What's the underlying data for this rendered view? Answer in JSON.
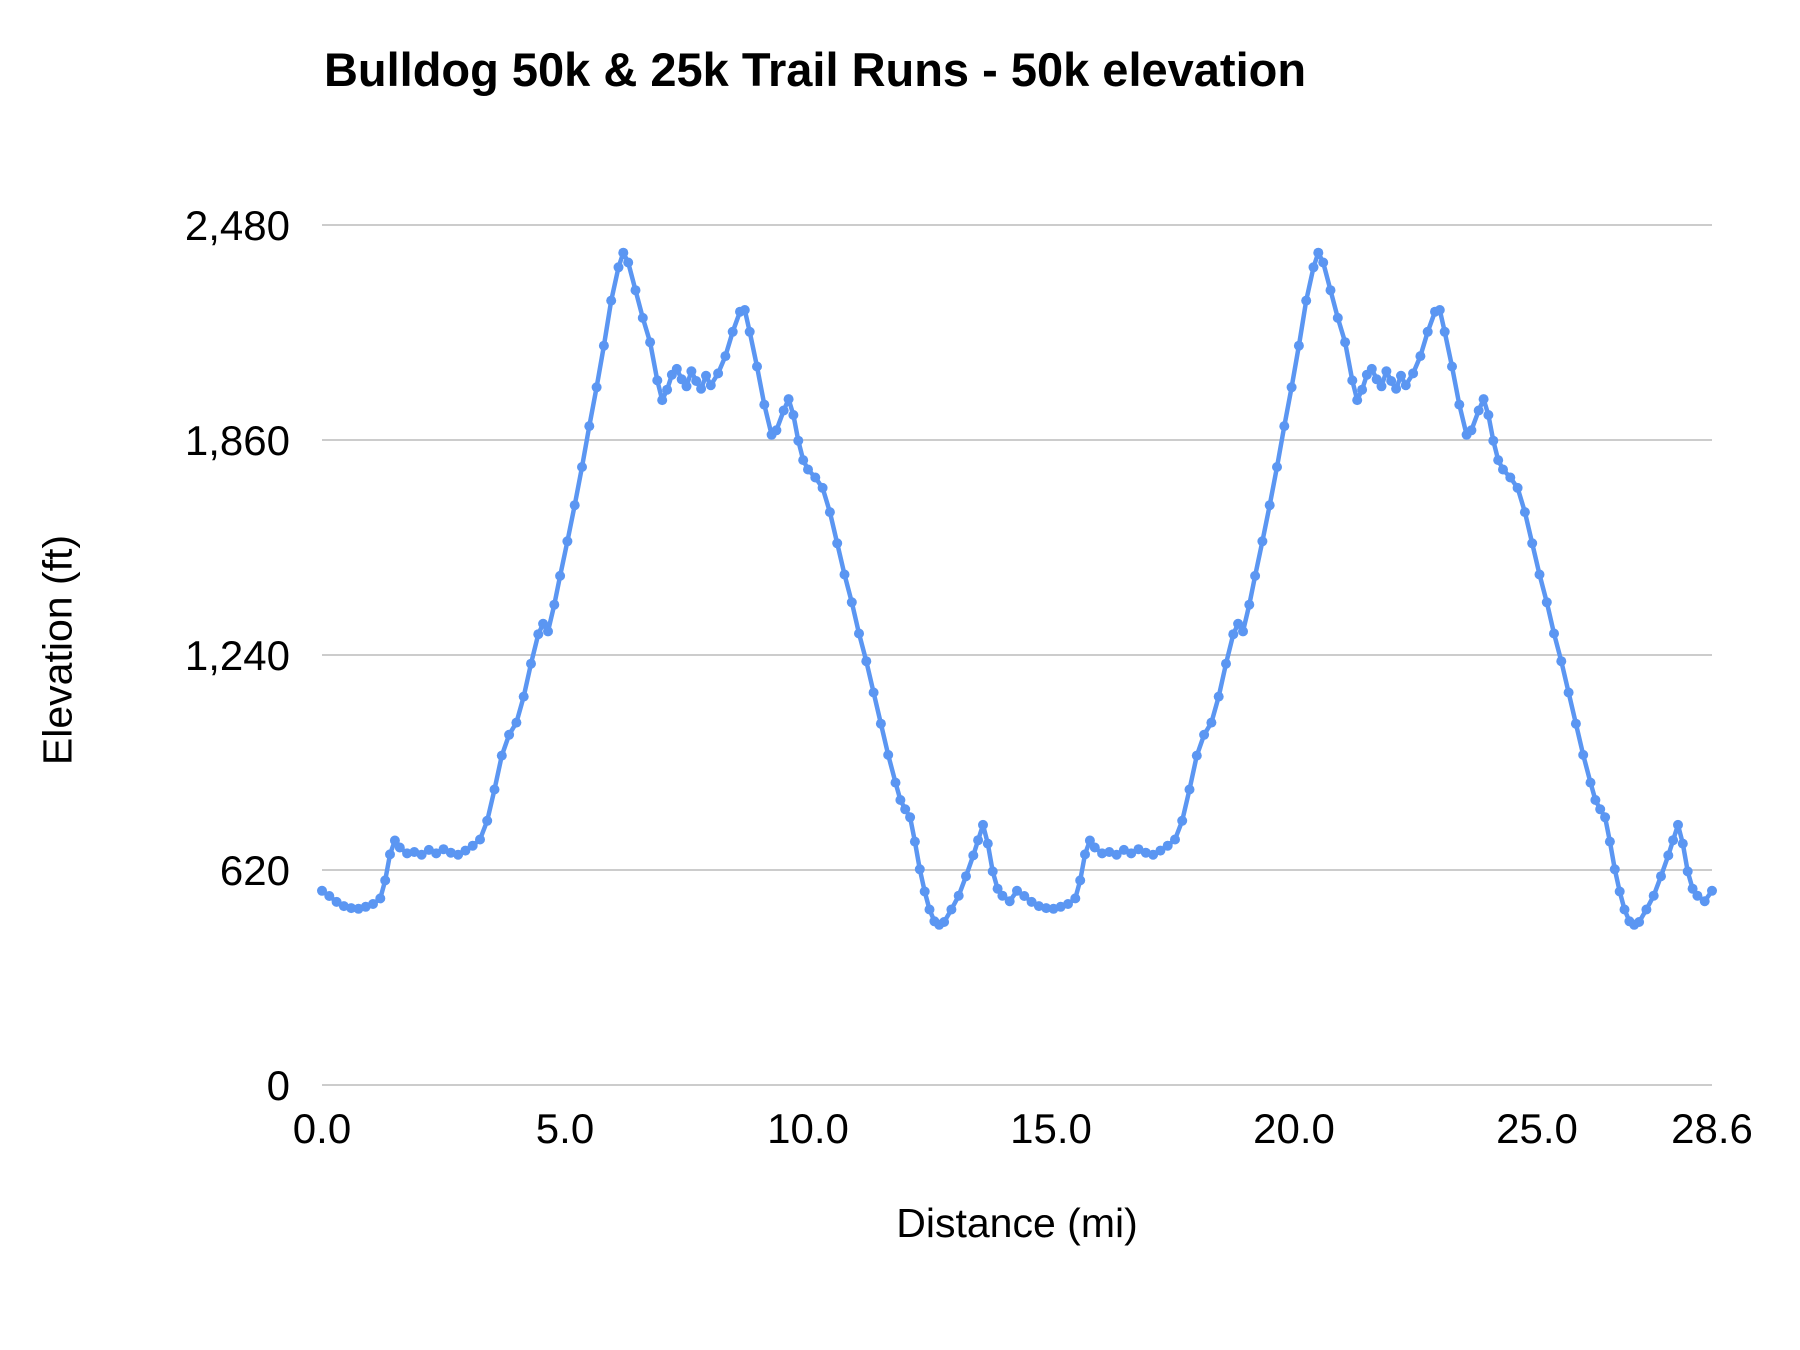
{
  "chart_data": {
    "type": "line",
    "title": "Bulldog 50k & 25k Trail Runs - 50k elevation",
    "xlabel": "Distance (mi)",
    "ylabel": "Elevation (ft)",
    "xlim": [
      0,
      28.6
    ],
    "ylim": [
      0,
      2480
    ],
    "x_ticks": [
      0,
      5,
      10,
      15,
      20,
      25,
      28.6
    ],
    "x_tick_labels": [
      "0.0",
      "5.0",
      "10.0",
      "15.0",
      "20.0",
      "25.0",
      "28.6"
    ],
    "y_ticks": [
      0,
      620,
      1240,
      1860,
      2480
    ],
    "y_tick_labels": [
      "0",
      "620",
      "1,240",
      "1,860",
      "2,480"
    ],
    "grid": "horizontal",
    "legend": "none",
    "line_color": "#5b96f2",
    "grid_color": "#cccccc",
    "text_color": "#000000",
    "points": [
      [
        0.0,
        560
      ],
      [
        0.15,
        545
      ],
      [
        0.3,
        528
      ],
      [
        0.45,
        516
      ],
      [
        0.6,
        510
      ],
      [
        0.75,
        508
      ],
      [
        0.9,
        514
      ],
      [
        1.05,
        522
      ],
      [
        1.2,
        538
      ],
      [
        1.3,
        590
      ],
      [
        1.4,
        665
      ],
      [
        1.5,
        705
      ],
      [
        1.6,
        685
      ],
      [
        1.75,
        668
      ],
      [
        1.9,
        672
      ],
      [
        2.05,
        664
      ],
      [
        2.2,
        678
      ],
      [
        2.35,
        668
      ],
      [
        2.5,
        680
      ],
      [
        2.65,
        670
      ],
      [
        2.8,
        664
      ],
      [
        2.95,
        676
      ],
      [
        3.1,
        690
      ],
      [
        3.25,
        708
      ],
      [
        3.4,
        762
      ],
      [
        3.55,
        852
      ],
      [
        3.7,
        950
      ],
      [
        3.85,
        1010
      ],
      [
        4.0,
        1045
      ],
      [
        4.15,
        1120
      ],
      [
        4.3,
        1215
      ],
      [
        4.45,
        1300
      ],
      [
        4.55,
        1330
      ],
      [
        4.65,
        1308
      ],
      [
        4.78,
        1385
      ],
      [
        4.9,
        1468
      ],
      [
        5.05,
        1568
      ],
      [
        5.2,
        1672
      ],
      [
        5.35,
        1782
      ],
      [
        5.5,
        1900
      ],
      [
        5.65,
        2012
      ],
      [
        5.8,
        2132
      ],
      [
        5.95,
        2262
      ],
      [
        6.1,
        2358
      ],
      [
        6.2,
        2400
      ],
      [
        6.3,
        2372
      ],
      [
        6.45,
        2292
      ],
      [
        6.6,
        2212
      ],
      [
        6.75,
        2142
      ],
      [
        6.9,
        2032
      ],
      [
        7.0,
        1975
      ],
      [
        7.1,
        2005
      ],
      [
        7.2,
        2048
      ],
      [
        7.3,
        2065
      ],
      [
        7.4,
        2035
      ],
      [
        7.5,
        2015
      ],
      [
        7.6,
        2058
      ],
      [
        7.7,
        2030
      ],
      [
        7.8,
        2008
      ],
      [
        7.9,
        2045
      ],
      [
        8.0,
        2018
      ],
      [
        8.15,
        2052
      ],
      [
        8.3,
        2102
      ],
      [
        8.45,
        2172
      ],
      [
        8.6,
        2230
      ],
      [
        8.7,
        2235
      ],
      [
        8.8,
        2172
      ],
      [
        8.95,
        2072
      ],
      [
        9.1,
        1962
      ],
      [
        9.25,
        1875
      ],
      [
        9.35,
        1888
      ],
      [
        9.5,
        1945
      ],
      [
        9.6,
        1978
      ],
      [
        9.7,
        1932
      ],
      [
        9.8,
        1858
      ],
      [
        9.9,
        1802
      ],
      [
        10.0,
        1775
      ],
      [
        10.15,
        1752
      ],
      [
        10.3,
        1722
      ],
      [
        10.45,
        1652
      ],
      [
        10.6,
        1562
      ],
      [
        10.75,
        1472
      ],
      [
        10.9,
        1392
      ],
      [
        11.05,
        1302
      ],
      [
        11.2,
        1222
      ],
      [
        11.35,
        1132
      ],
      [
        11.5,
        1042
      ],
      [
        11.65,
        952
      ],
      [
        11.8,
        872
      ],
      [
        11.9,
        822
      ],
      [
        12.0,
        795
      ],
      [
        12.1,
        772
      ],
      [
        12.2,
        702
      ],
      [
        12.3,
        622
      ],
      [
        12.4,
        558
      ],
      [
        12.5,
        506
      ],
      [
        12.6,
        472
      ],
      [
        12.7,
        462
      ],
      [
        12.8,
        470
      ],
      [
        12.95,
        506
      ],
      [
        13.1,
        546
      ],
      [
        13.25,
        602
      ],
      [
        13.4,
        662
      ],
      [
        13.5,
        706
      ],
      [
        13.6,
        750
      ],
      [
        13.7,
        696
      ],
      [
        13.8,
        616
      ],
      [
        13.9,
        566
      ],
      [
        14.0,
        546
      ],
      [
        14.15,
        530
      ],
      [
        14.3,
        560
      ],
      [
        14.45,
        545
      ],
      [
        14.6,
        528
      ],
      [
        14.75,
        516
      ],
      [
        14.9,
        510
      ],
      [
        15.05,
        508
      ],
      [
        15.2,
        514
      ],
      [
        15.35,
        522
      ],
      [
        15.5,
        538
      ],
      [
        15.6,
        590
      ],
      [
        15.7,
        665
      ],
      [
        15.8,
        705
      ],
      [
        15.9,
        685
      ],
      [
        16.05,
        668
      ],
      [
        16.2,
        672
      ],
      [
        16.35,
        664
      ],
      [
        16.5,
        678
      ],
      [
        16.65,
        668
      ],
      [
        16.8,
        680
      ],
      [
        16.95,
        670
      ],
      [
        17.1,
        664
      ],
      [
        17.25,
        676
      ],
      [
        17.4,
        690
      ],
      [
        17.55,
        708
      ],
      [
        17.7,
        762
      ],
      [
        17.85,
        852
      ],
      [
        18.0,
        950
      ],
      [
        18.15,
        1010
      ],
      [
        18.3,
        1045
      ],
      [
        18.45,
        1120
      ],
      [
        18.6,
        1215
      ],
      [
        18.75,
        1300
      ],
      [
        18.85,
        1330
      ],
      [
        18.95,
        1308
      ],
      [
        19.08,
        1385
      ],
      [
        19.2,
        1468
      ],
      [
        19.35,
        1568
      ],
      [
        19.5,
        1672
      ],
      [
        19.65,
        1782
      ],
      [
        19.8,
        1900
      ],
      [
        19.95,
        2012
      ],
      [
        20.1,
        2132
      ],
      [
        20.25,
        2262
      ],
      [
        20.4,
        2358
      ],
      [
        20.5,
        2400
      ],
      [
        20.6,
        2372
      ],
      [
        20.75,
        2292
      ],
      [
        20.9,
        2212
      ],
      [
        21.05,
        2142
      ],
      [
        21.2,
        2032
      ],
      [
        21.3,
        1975
      ],
      [
        21.4,
        2005
      ],
      [
        21.5,
        2048
      ],
      [
        21.6,
        2065
      ],
      [
        21.7,
        2035
      ],
      [
        21.8,
        2015
      ],
      [
        21.9,
        2058
      ],
      [
        22.0,
        2030
      ],
      [
        22.1,
        2008
      ],
      [
        22.2,
        2045
      ],
      [
        22.3,
        2018
      ],
      [
        22.45,
        2052
      ],
      [
        22.6,
        2102
      ],
      [
        22.75,
        2172
      ],
      [
        22.9,
        2230
      ],
      [
        23.0,
        2235
      ],
      [
        23.1,
        2172
      ],
      [
        23.25,
        2072
      ],
      [
        23.4,
        1962
      ],
      [
        23.55,
        1875
      ],
      [
        23.65,
        1888
      ],
      [
        23.8,
        1945
      ],
      [
        23.9,
        1978
      ],
      [
        24.0,
        1932
      ],
      [
        24.1,
        1858
      ],
      [
        24.2,
        1802
      ],
      [
        24.3,
        1775
      ],
      [
        24.45,
        1752
      ],
      [
        24.6,
        1722
      ],
      [
        24.75,
        1652
      ],
      [
        24.9,
        1562
      ],
      [
        25.05,
        1472
      ],
      [
        25.2,
        1392
      ],
      [
        25.35,
        1302
      ],
      [
        25.5,
        1222
      ],
      [
        25.65,
        1132
      ],
      [
        25.8,
        1042
      ],
      [
        25.95,
        952
      ],
      [
        26.1,
        872
      ],
      [
        26.2,
        822
      ],
      [
        26.3,
        795
      ],
      [
        26.4,
        772
      ],
      [
        26.5,
        702
      ],
      [
        26.6,
        622
      ],
      [
        26.7,
        558
      ],
      [
        26.8,
        506
      ],
      [
        26.9,
        472
      ],
      [
        27.0,
        462
      ],
      [
        27.1,
        470
      ],
      [
        27.25,
        506
      ],
      [
        27.4,
        546
      ],
      [
        27.55,
        602
      ],
      [
        27.7,
        662
      ],
      [
        27.8,
        706
      ],
      [
        27.9,
        750
      ],
      [
        28.0,
        696
      ],
      [
        28.1,
        616
      ],
      [
        28.2,
        566
      ],
      [
        28.3,
        546
      ],
      [
        28.45,
        530
      ],
      [
        28.6,
        560
      ]
    ]
  }
}
